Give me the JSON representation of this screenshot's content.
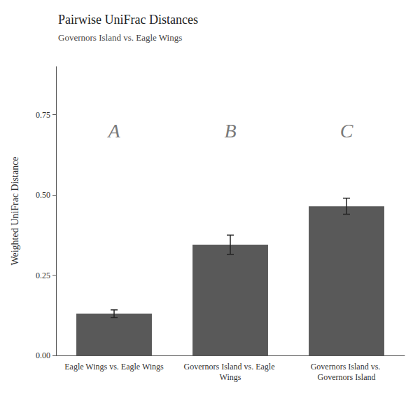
{
  "chart_data": {
    "type": "bar",
    "title": "Pairwise UniFrac Distances",
    "subtitle": "Governors Island vs. Eagle Wings",
    "ylabel": "Weighted UniFrac Distance",
    "categories": [
      "Eagle Wings vs. Eagle Wings",
      "Governors Island vs. Eagle Wings",
      "Governors Island vs. Governors Island"
    ],
    "values": [
      0.13,
      0.345,
      0.465
    ],
    "errors": [
      0.012,
      0.03,
      0.025
    ],
    "color": "#595959",
    "ylim": [
      0.0,
      0.9
    ],
    "yticks": [
      {
        "value": 0.0,
        "label": "0.00"
      },
      {
        "value": 0.25,
        "label": "0.25"
      },
      {
        "value": 0.5,
        "label": "0.50"
      },
      {
        "value": 0.75,
        "label": "0.75"
      }
    ],
    "annotations": [
      {
        "text": "A",
        "x": "Eagle Wings vs. Eagle Wings",
        "y": 0.7
      },
      {
        "text": "B",
        "x": "Governors Island vs. Eagle Wings",
        "y": 0.7
      },
      {
        "text": "C",
        "x": "Governors Island vs. Governors Island",
        "y": 0.7
      }
    ],
    "grid": false
  }
}
